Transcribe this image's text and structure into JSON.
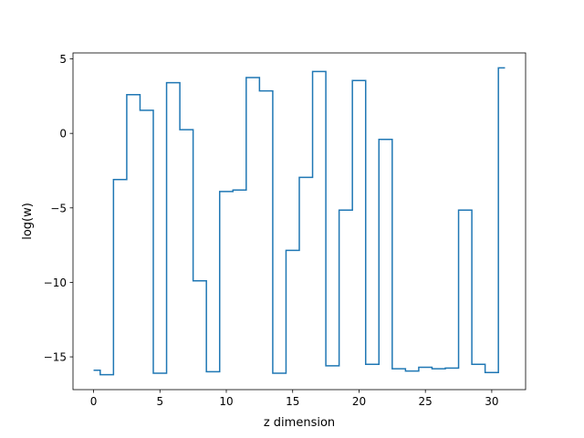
{
  "chart_data": {
    "type": "line",
    "drawstyle": "steps-mid",
    "xlabel": "z dimension",
    "ylabel": "log(w)",
    "xlim": [
      -1.55,
      32.55
    ],
    "ylim": [
      -17.2,
      5.4
    ],
    "xticks": [
      0,
      5,
      10,
      15,
      20,
      25,
      30
    ],
    "yticks": [
      -15,
      -10,
      -5,
      0,
      5
    ],
    "ytick_labels": [
      "−15",
      "−10",
      "−5",
      "0",
      "5"
    ],
    "grid": false,
    "line_color": "#1f77b4",
    "x": [
      0,
      1,
      2,
      3,
      4,
      5,
      6,
      7,
      8,
      9,
      10,
      11,
      12,
      13,
      14,
      15,
      16,
      17,
      18,
      19,
      20,
      21,
      22,
      23,
      24,
      25,
      26,
      27,
      28,
      29,
      30,
      31
    ],
    "y": [
      -15.9,
      -16.2,
      -3.1,
      2.6,
      1.55,
      -16.1,
      3.4,
      0.25,
      -9.9,
      -16.0,
      -3.9,
      -3.8,
      3.75,
      2.85,
      -16.1,
      -7.85,
      -2.95,
      4.15,
      -15.6,
      -5.15,
      3.55,
      -15.5,
      -0.4,
      -15.8,
      -15.95,
      -15.7,
      -15.8,
      -15.75,
      -5.15,
      -15.5,
      -16.05,
      4.4
    ]
  }
}
